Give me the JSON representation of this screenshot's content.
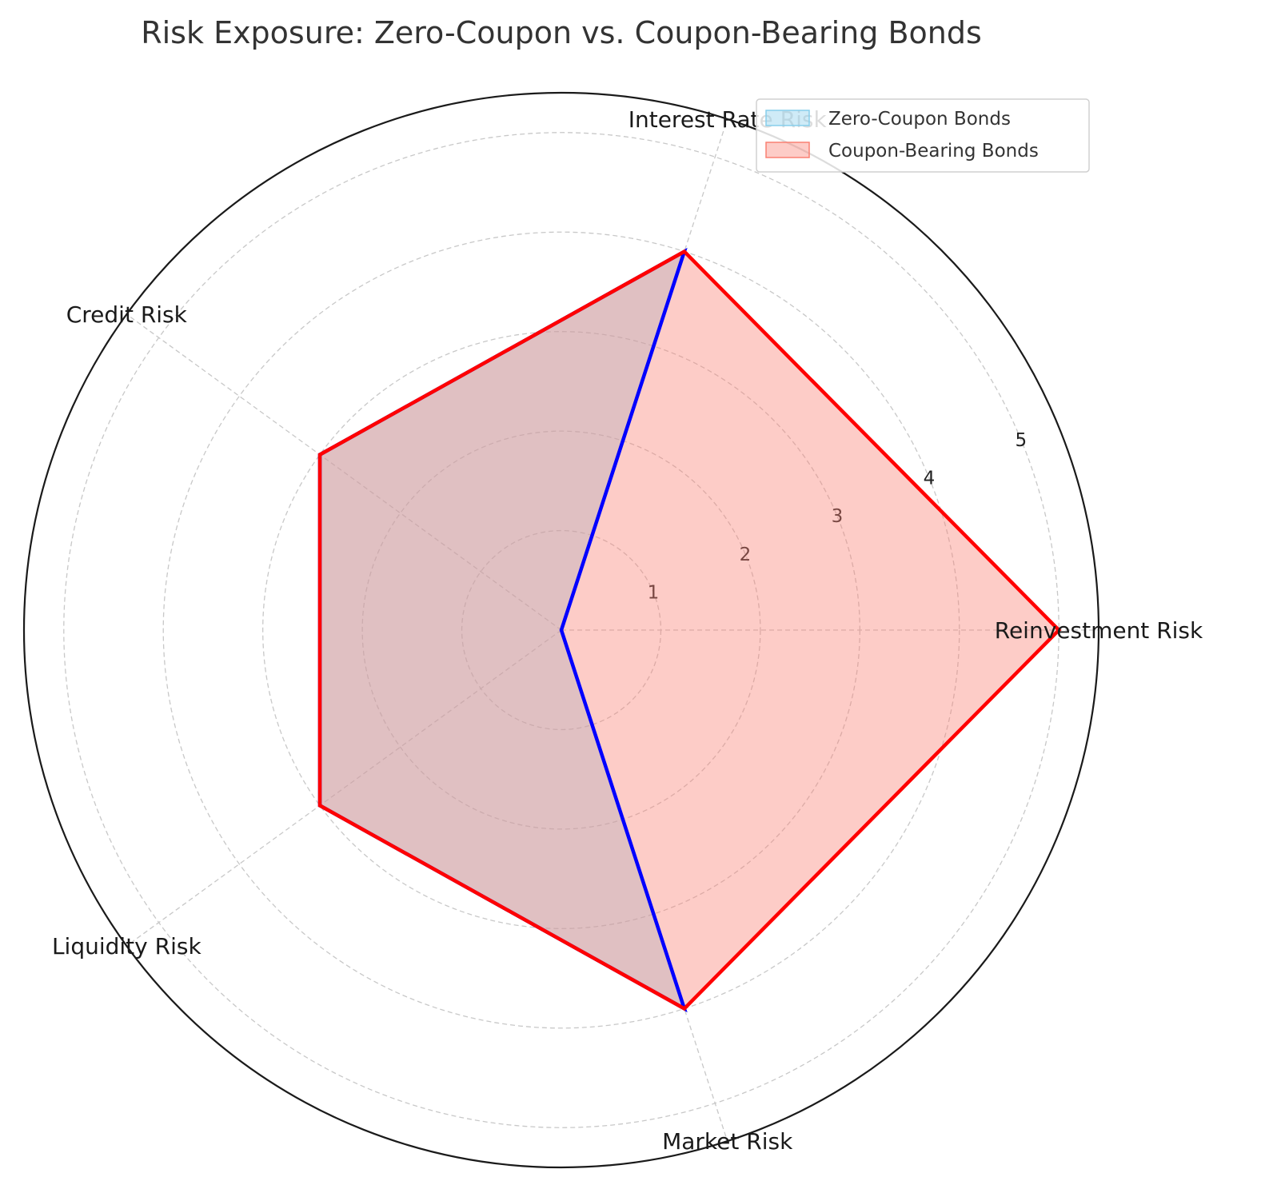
{
  "chart_data": {
    "type": "radar",
    "title": "Risk Exposure: Zero-Coupon vs. Coupon-Bearing Bonds",
    "categories": [
      "Reinvestment Risk",
      "Interest Rate Risk",
      "Credit Risk",
      "Liquidity Risk",
      "Market Risk"
    ],
    "series": [
      {
        "name": "Zero-Coupon Bonds",
        "values": [
          0,
          4,
          3,
          3,
          4
        ],
        "fill": "#87ceeb",
        "line": "#0000ff"
      },
      {
        "name": "Coupon-Bearing Bonds",
        "values": [
          5,
          4,
          3,
          3,
          4
        ],
        "fill": "#fa8072",
        "line": "#ff0000"
      }
    ],
    "rlim": [
      0,
      5.4
    ],
    "rticks": [
      "1",
      "2",
      "3",
      "4",
      "5"
    ],
    "grid": true,
    "legend_position": "top-right"
  }
}
